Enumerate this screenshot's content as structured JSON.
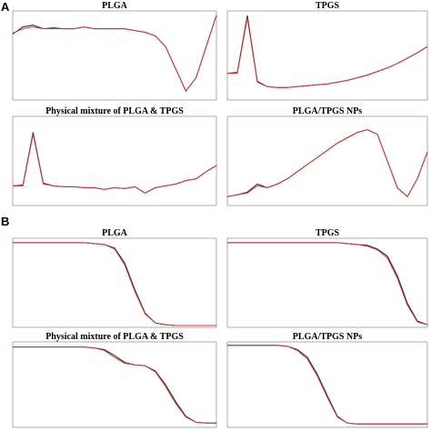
{
  "figure_labels": [
    "A",
    "B"
  ],
  "chart_data": [
    {
      "type": "line",
      "title": "PLGA",
      "x": [
        0,
        5,
        10,
        15,
        20,
        25,
        30,
        35,
        40,
        45,
        50,
        55,
        60,
        65,
        70,
        75,
        80,
        85,
        90,
        95,
        100
      ],
      "xlim": [
        0,
        100
      ],
      "ylim": [
        0,
        100
      ],
      "series": [
        {
          "color": "#222222",
          "values": [
            74,
            82,
            84,
            80,
            81,
            80,
            80,
            82,
            80,
            80,
            80,
            80,
            78,
            76,
            72,
            60,
            35,
            10,
            25,
            60,
            95
          ]
        },
        {
          "color": "#d9363e",
          "values": [
            75,
            80,
            82,
            80,
            80,
            80,
            80,
            82,
            80,
            80,
            80,
            80,
            78,
            76,
            72,
            60,
            35,
            10,
            25,
            60,
            95
          ]
        }
      ]
    },
    {
      "type": "line",
      "title": "TPGS",
      "x": [
        0,
        5,
        10,
        15,
        20,
        25,
        30,
        35,
        40,
        45,
        50,
        55,
        60,
        65,
        70,
        75,
        80,
        85,
        90,
        95,
        100
      ],
      "xlim": [
        0,
        100
      ],
      "ylim": [
        0,
        100
      ],
      "series": [
        {
          "color": "#222222",
          "values": [
            30,
            31,
            95,
            21,
            15,
            14,
            14,
            15,
            16,
            17,
            18,
            20,
            22,
            25,
            28,
            32,
            36,
            41,
            47,
            53,
            60
          ]
        },
        {
          "color": "#d9363e",
          "values": [
            30,
            30,
            92,
            20,
            15,
            14,
            14,
            15,
            16,
            17,
            18,
            20,
            22,
            25,
            28,
            32,
            36,
            41,
            47,
            53,
            60
          ]
        }
      ]
    },
    {
      "type": "line",
      "title": "Physical mixture of PLGA & TPGS",
      "x": [
        0,
        5,
        10,
        15,
        20,
        25,
        30,
        35,
        40,
        45,
        50,
        55,
        60,
        65,
        70,
        75,
        80,
        85,
        90,
        95,
        100
      ],
      "xlim": [
        0,
        100
      ],
      "ylim": [
        0,
        100
      ],
      "series": [
        {
          "color": "#222222",
          "values": [
            22,
            23,
            82,
            25,
            22,
            21,
            21,
            20,
            20,
            18,
            20,
            19,
            21,
            14,
            20,
            22,
            24,
            28,
            30,
            38,
            45
          ]
        },
        {
          "color": "#d9363e",
          "values": [
            22,
            22,
            80,
            24,
            22,
            21,
            21,
            20,
            20,
            18,
            20,
            19,
            21,
            14,
            20,
            22,
            24,
            28,
            30,
            38,
            45
          ]
        }
      ]
    },
    {
      "type": "line",
      "title": "PLGA/TPGS NPs",
      "x": [
        0,
        5,
        10,
        15,
        20,
        25,
        30,
        35,
        40,
        45,
        50,
        55,
        60,
        65,
        70,
        75,
        80,
        85,
        90,
        95,
        100
      ],
      "xlim": [
        0,
        100
      ],
      "ylim": [
        0,
        100
      ],
      "series": [
        {
          "color": "#222222",
          "values": [
            10,
            12,
            15,
            24,
            20,
            24,
            30,
            38,
            46,
            54,
            62,
            70,
            76,
            82,
            85,
            80,
            50,
            20,
            10,
            30,
            60
          ]
        },
        {
          "color": "#d9363e",
          "values": [
            10,
            12,
            14,
            22,
            20,
            24,
            30,
            38,
            46,
            54,
            62,
            70,
            76,
            82,
            85,
            80,
            50,
            20,
            10,
            30,
            60
          ]
        }
      ]
    },
    {
      "type": "line",
      "title": "PLGA",
      "x": [
        0,
        5,
        10,
        15,
        20,
        25,
        30,
        35,
        40,
        45,
        50,
        55,
        60,
        65,
        70,
        75,
        80,
        85,
        90,
        95,
        100
      ],
      "xlim": [
        0,
        100
      ],
      "ylim": [
        0,
        100
      ],
      "series": [
        {
          "color": "#222222",
          "values": [
            95,
            95,
            95,
            95,
            95,
            95,
            95,
            95,
            94,
            93,
            89,
            72,
            42,
            16,
            5,
            3,
            2,
            2,
            2,
            2,
            2
          ]
        },
        {
          "color": "#d9363e",
          "values": [
            95,
            95,
            95,
            95,
            95,
            95,
            95,
            95,
            94,
            93,
            88,
            70,
            40,
            15,
            5,
            3,
            2,
            2,
            2,
            2,
            2
          ]
        }
      ]
    },
    {
      "type": "line",
      "title": "TPGS",
      "x": [
        0,
        5,
        10,
        15,
        20,
        25,
        30,
        35,
        40,
        45,
        50,
        55,
        60,
        65,
        70,
        75,
        80,
        85,
        90,
        95,
        100
      ],
      "xlim": [
        0,
        100
      ],
      "ylim": [
        0,
        100
      ],
      "series": [
        {
          "color": "#222222",
          "values": [
            95,
            95,
            95,
            95,
            95,
            95,
            95,
            95,
            95,
            95,
            95,
            95,
            94,
            93,
            92,
            88,
            80,
            58,
            27,
            7,
            3
          ]
        },
        {
          "color": "#d9363e",
          "values": [
            95,
            95,
            95,
            95,
            95,
            95,
            95,
            95,
            95,
            95,
            95,
            95,
            94,
            93,
            91,
            87,
            78,
            55,
            25,
            6,
            3
          ]
        }
      ]
    },
    {
      "type": "line",
      "title": "Physical mixture of PLGA & TPGS",
      "x": [
        0,
        5,
        10,
        15,
        20,
        25,
        30,
        35,
        40,
        45,
        50,
        55,
        60,
        65,
        70,
        75,
        80,
        85,
        90,
        95,
        100
      ],
      "xlim": [
        0,
        100
      ],
      "ylim": [
        0,
        100
      ],
      "series": [
        {
          "color": "#222222",
          "values": [
            94,
            94,
            94,
            94,
            94,
            94,
            94,
            94,
            93,
            91,
            84,
            76,
            73,
            72,
            66,
            50,
            30,
            13,
            6,
            5,
            5
          ]
        },
        {
          "color": "#d9363e",
          "values": [
            94,
            94,
            94,
            94,
            94,
            94,
            94,
            94,
            93,
            90,
            82,
            75,
            73,
            72,
            65,
            48,
            28,
            12,
            6,
            5,
            5
          ]
        }
      ]
    },
    {
      "type": "line",
      "title": "PLGA/TPGS NPs",
      "x": [
        0,
        5,
        10,
        15,
        20,
        25,
        30,
        35,
        40,
        45,
        50,
        55,
        60,
        65,
        70,
        75,
        80,
        85,
        90,
        95,
        100
      ],
      "xlim": [
        0,
        100
      ],
      "ylim": [
        0,
        100
      ],
      "series": [
        {
          "color": "#222222",
          "values": [
            96,
            96,
            96,
            96,
            96,
            96,
            95,
            91,
            82,
            62,
            37,
            13,
            5,
            4,
            4,
            4,
            4,
            4,
            4,
            4,
            4
          ]
        },
        {
          "color": "#d9363e",
          "values": [
            96,
            96,
            96,
            96,
            96,
            96,
            95,
            90,
            80,
            60,
            35,
            12,
            5,
            4,
            4,
            4,
            4,
            4,
            4,
            4,
            4
          ]
        }
      ]
    }
  ]
}
